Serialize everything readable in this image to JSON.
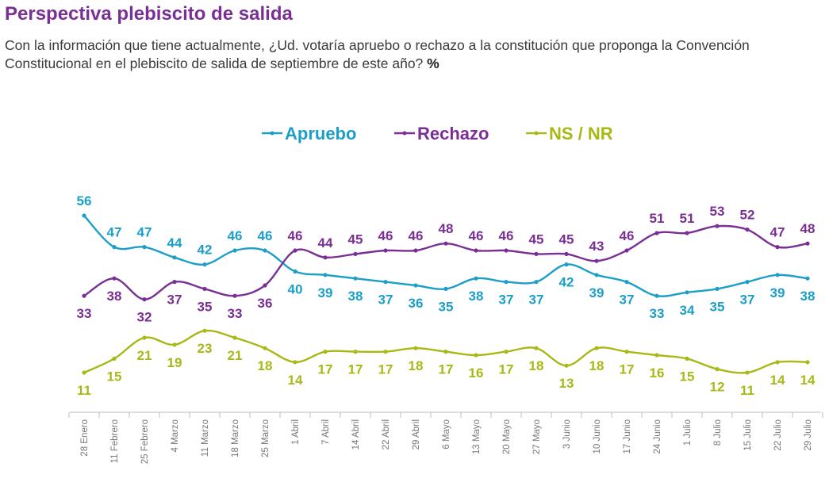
{
  "header": {
    "title": "Perspectiva plebiscito de salida",
    "subtitle": "Con la información que tiene actualmente, ¿Ud. votaría apruebo o rechazo a la constitución que proponga la Convención Constitucional en el plebiscito de salida de septiembre de este año?",
    "unit": "%"
  },
  "chart_data": {
    "type": "line",
    "legend_position": "top-center",
    "grid": false,
    "categories": [
      "28 Enero",
      "11 Febrero",
      "25 Febrero",
      "4 Marzo",
      "11 Marzo",
      "18 Marzo",
      "25 Marzo",
      "1 Abril",
      "7 Abril",
      "14 Abril",
      "22 Abril",
      "29 Abril",
      "6 Mayo",
      "13 Mayo",
      "20 Mayo",
      "27 Mayo",
      "3 Junio",
      "10 Junio",
      "17 Junio",
      "24 Junio",
      "1 Julio",
      "8 Julio",
      "15 Julio",
      "22 Julio",
      "29 Julio"
    ],
    "series": [
      {
        "name": "Apruebo",
        "color": "#1b9fc9",
        "values": [
          56,
          47,
          47,
          44,
          42,
          46,
          46,
          40,
          39,
          38,
          37,
          36,
          35,
          38,
          37,
          37,
          42,
          39,
          37,
          33,
          34,
          35,
          37,
          39,
          38
        ]
      },
      {
        "name": "Rechazo",
        "color": "#7a2f95",
        "values": [
          33,
          38,
          32,
          37,
          35,
          33,
          36,
          46,
          44,
          45,
          46,
          46,
          48,
          46,
          46,
          45,
          45,
          43,
          46,
          51,
          51,
          53,
          52,
          47,
          48
        ]
      },
      {
        "name": "NS / NR",
        "color": "#a8b815",
        "values": [
          11,
          15,
          21,
          19,
          23,
          21,
          18,
          14,
          17,
          17,
          17,
          18,
          17,
          16,
          17,
          18,
          13,
          18,
          17,
          16,
          15,
          12,
          11,
          14,
          14
        ]
      }
    ]
  }
}
